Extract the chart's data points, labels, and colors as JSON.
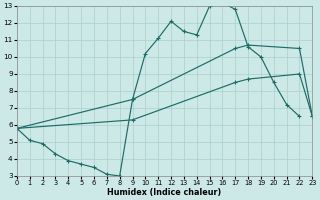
{
  "xlabel": "Humidex (Indice chaleur)",
  "xlim": [
    0,
    23
  ],
  "ylim": [
    3,
    13
  ],
  "xticks": [
    0,
    1,
    2,
    3,
    4,
    5,
    6,
    7,
    8,
    9,
    10,
    11,
    12,
    13,
    14,
    15,
    16,
    17,
    18,
    19,
    20,
    21,
    22,
    23
  ],
  "yticks": [
    3,
    4,
    5,
    6,
    7,
    8,
    9,
    10,
    11,
    12,
    13
  ],
  "bg": "#cde9e7",
  "grid_color": "#aacfcc",
  "lc": "#1e6b65",
  "curve1_x": [
    0,
    1,
    2,
    3,
    4,
    5,
    6,
    7,
    8,
    9,
    10,
    11,
    12,
    13,
    14,
    15,
    16,
    17,
    18,
    19,
    20,
    21,
    22
  ],
  "curve1_y": [
    5.8,
    5.1,
    4.9,
    4.3,
    3.9,
    3.7,
    3.5,
    3.1,
    3.0,
    7.5,
    10.2,
    11.1,
    12.1,
    11.5,
    11.3,
    13.0,
    13.2,
    12.8,
    10.6,
    10.0,
    8.5,
    7.2,
    6.5
  ],
  "curve2_x": [
    0,
    9,
    17,
    18,
    22,
    23
  ],
  "curve2_y": [
    5.8,
    7.5,
    10.5,
    10.7,
    10.5,
    6.5
  ],
  "curve3_x": [
    0,
    9,
    17,
    18,
    22,
    23
  ],
  "curve3_y": [
    5.8,
    6.3,
    8.5,
    8.7,
    9.0,
    6.5
  ]
}
